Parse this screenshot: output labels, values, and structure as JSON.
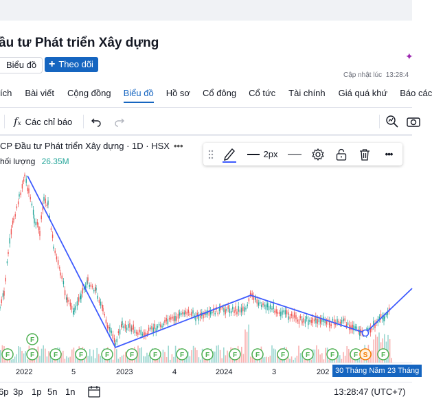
{
  "header": {
    "title": "ầu tư Phát triển Xây dựng",
    "chart_chip": "Biểu đồ",
    "follow_label": "Theo dõi",
    "updated_label": "Cập nhật lúc",
    "updated_time": "13:28:4"
  },
  "tabs": [
    {
      "label": "ích"
    },
    {
      "label": "Bài viết"
    },
    {
      "label": "Cộng đồng"
    },
    {
      "label": "Biểu đồ",
      "active": true
    },
    {
      "label": "Hồ sơ"
    },
    {
      "label": "Cổ đông"
    },
    {
      "label": "Cổ tức"
    },
    {
      "label": "Tài chính"
    },
    {
      "label": "Giá quá khứ"
    },
    {
      "label": "Báo các"
    }
  ],
  "toolbar": {
    "indicators_label": "Các chỉ báo",
    "fx_icon": "function-icon",
    "undo_icon": "undo-icon",
    "redo_icon": "redo-icon",
    "right_icons": [
      "magnify-chart-icon",
      "camera-icon"
    ]
  },
  "chart": {
    "legend_title": "CP Đầu tư Phát triển Xây dựng · 1D · HSX",
    "volume_label": "hối lượng",
    "volume_value": "26.35M",
    "line_color": "#3d5afe",
    "up_color": "#26a69a",
    "down_color": "#ef5350",
    "event_marker_color": "#4caf50",
    "event_marker_letter": "F",
    "split_marker_letter": "S",
    "split_marker_color": "#f57c00",
    "x_ticks": [
      "2022",
      "5",
      "2023",
      "4",
      "2024",
      "3",
      "202"
    ],
    "crosshair_date_1": "30 Tháng Năm",
    "crosshair_date_2": "23 Tháng"
  },
  "drawing_toolbar": {
    "width_label": "2px",
    "icons": [
      "drag-handle-icon",
      "pencil-icon",
      "line-width-icon",
      "line-style-icon",
      "settings-icon",
      "unlock-icon",
      "trash-icon",
      "more-icon"
    ]
  },
  "bottom": {
    "ranges": [
      "6p",
      "3p",
      "1p",
      "5n",
      "1n"
    ],
    "time": "13:28:47 (UTC+7)"
  }
}
